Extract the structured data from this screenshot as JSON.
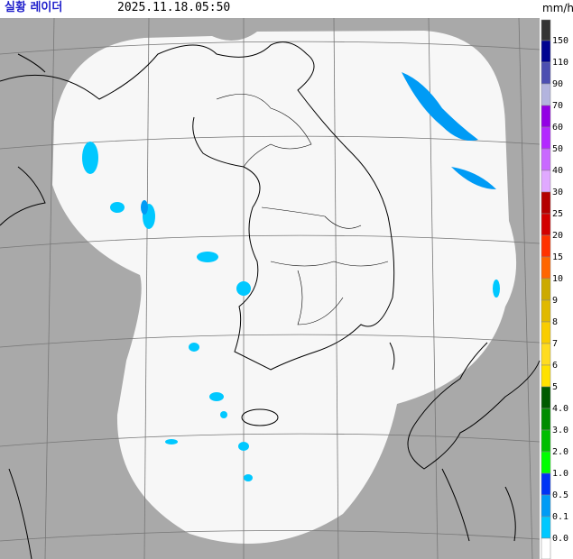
{
  "header": {
    "title": "실황 레이더",
    "timestamp": "2025.11.18.05:50",
    "unit": "mm/h"
  },
  "legend": {
    "labels": [
      "150",
      "110",
      "90",
      "70",
      "60",
      "50",
      "40",
      "30",
      "25",
      "20",
      "15",
      "10",
      "9",
      "8",
      "7",
      "6",
      "5",
      "4.0",
      "3.0",
      "2.0",
      "1.0",
      "0.5",
      "0.1",
      "0.0"
    ],
    "colors": [
      "#333333",
      "#000390",
      "#4c4eb1",
      "#b3b4de",
      "#9300e4",
      "#b329ff",
      "#c969ff",
      "#e0a9ff",
      "#b40000",
      "#d20000",
      "#ff3200",
      "#ff6600",
      "#ccaa00",
      "#e0b900",
      "#f9cd00",
      "#ffdc1f",
      "#ffe100",
      "#005a00",
      "#008c00",
      "#00be00",
      "#00ff00",
      "#0033f5",
      "#009bf5",
      "#00c8ff",
      "#ffffff"
    ]
  }
}
